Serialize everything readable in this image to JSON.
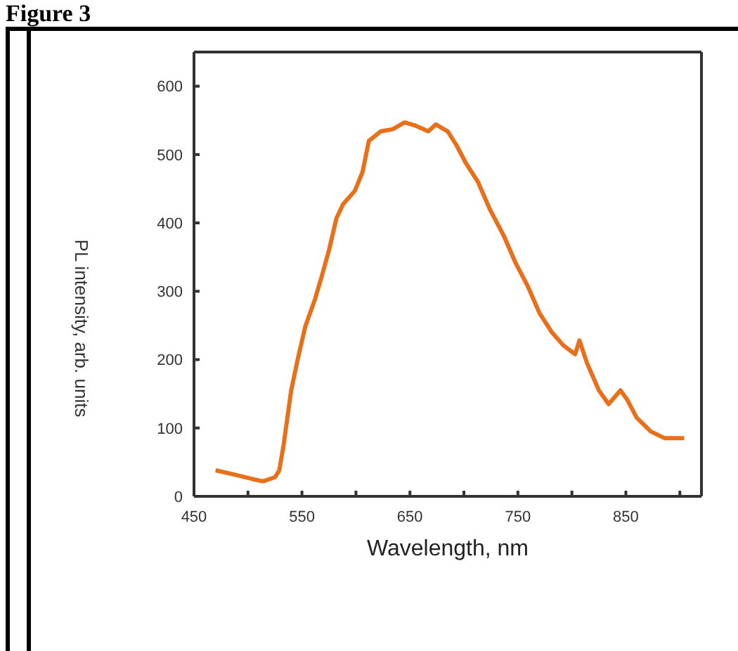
{
  "chart_data": {
    "type": "line",
    "title": "Figure 3",
    "xlabel": "Wavelength, nm",
    "ylabel": "PL intensity, arb. units",
    "x": [
      470,
      487,
      505,
      514,
      525,
      529,
      533,
      540,
      546,
      553,
      562,
      568,
      575,
      582,
      588,
      599,
      606,
      612,
      623,
      634,
      645,
      654,
      667,
      674,
      685,
      693,
      702,
      713,
      724,
      737,
      748,
      759,
      770,
      781,
      792,
      803,
      807,
      814,
      825,
      834,
      845,
      851,
      860,
      873,
      886,
      904
    ],
    "series": [
      {
        "color": "#e8701a",
        "values": [
          38,
          32,
          25,
          22,
          28,
          38,
          75,
          155,
          200,
          248,
          288,
          320,
          360,
          407,
          427,
          447,
          474,
          520,
          534,
          537,
          547,
          543,
          534,
          544,
          534,
          514,
          487,
          460,
          420,
          381,
          341,
          308,
          268,
          241,
          221,
          208,
          228,
          195,
          155,
          135,
          155,
          142,
          115,
          95,
          85,
          85
        ]
      }
    ],
    "xlim": [
      450,
      920
    ],
    "xticks": [
      450,
      {
        "value": 500,
        "label": null
      },
      550,
      {
        "value": 600,
        "label": null
      },
      650,
      {
        "value": 700,
        "label": null
      },
      750,
      {
        "value": 800,
        "label": null
      },
      850,
      {
        "value": 900,
        "label": null
      }
    ],
    "ylim": [
      0,
      650
    ],
    "yticks": [
      0,
      100,
      200,
      300,
      400,
      500,
      600
    ],
    "marker": "none",
    "line_style": "solid"
  }
}
